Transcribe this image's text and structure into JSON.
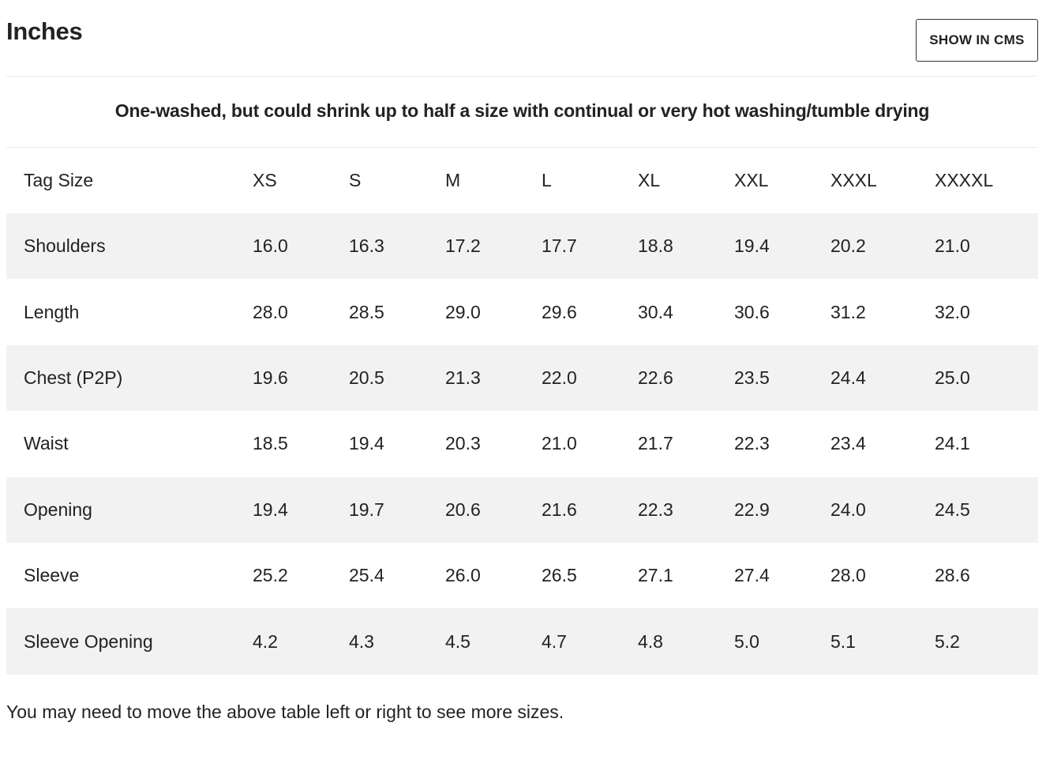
{
  "header": {
    "title": "Inches",
    "cms_button_label": "SHOW IN CMS"
  },
  "subtitle": "One-washed, but could shrink up to half a size with continual or very hot washing/tumble drying",
  "table": {
    "header_label": "Tag Size",
    "sizes": [
      "XS",
      "S",
      "M",
      "L",
      "XL",
      "XXL",
      "XXXL",
      "XXXXL"
    ],
    "rows": [
      {
        "label": "Shoulders",
        "values": [
          "16.0",
          "16.3",
          "17.2",
          "17.7",
          "18.8",
          "19.4",
          "20.2",
          "21.0"
        ]
      },
      {
        "label": "Length",
        "values": [
          "28.0",
          "28.5",
          "29.0",
          "29.6",
          "30.4",
          "30.6",
          "31.2",
          "32.0"
        ]
      },
      {
        "label": "Chest (P2P)",
        "values": [
          "19.6",
          "20.5",
          "21.3",
          "22.0",
          "22.6",
          "23.5",
          "24.4",
          "25.0"
        ]
      },
      {
        "label": "Waist",
        "values": [
          "18.5",
          "19.4",
          "20.3",
          "21.0",
          "21.7",
          "22.3",
          "23.4",
          "24.1"
        ]
      },
      {
        "label": "Opening",
        "values": [
          "19.4",
          "19.7",
          "20.6",
          "21.6",
          "22.3",
          "22.9",
          "24.0",
          "24.5"
        ]
      },
      {
        "label": "Sleeve",
        "values": [
          "25.2",
          "25.4",
          "26.0",
          "26.5",
          "27.1",
          "27.4",
          "28.0",
          "28.6"
        ]
      },
      {
        "label": "Sleeve Opening",
        "values": [
          "4.2",
          "4.3",
          "4.5",
          "4.7",
          "4.8",
          "5.0",
          "5.1",
          "5.2"
        ]
      }
    ]
  },
  "footer_note": "You may need to move the above table left or right to see more sizes."
}
